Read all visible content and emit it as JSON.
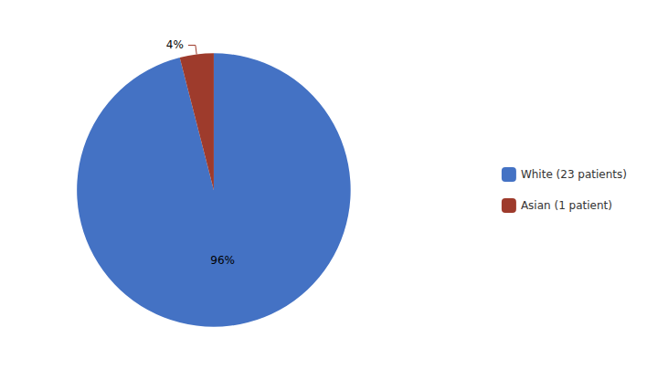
{
  "chart_data": {
    "type": "pie",
    "categories": [
      "White (23 patients)",
      "Asian (1 patient)"
    ],
    "values": [
      96,
      4
    ],
    "value_labels": [
      "96%",
      "4%"
    ],
    "colors": [
      "#4472C4",
      "#9E3B2C"
    ],
    "data_labels": true,
    "legend": "right"
  }
}
